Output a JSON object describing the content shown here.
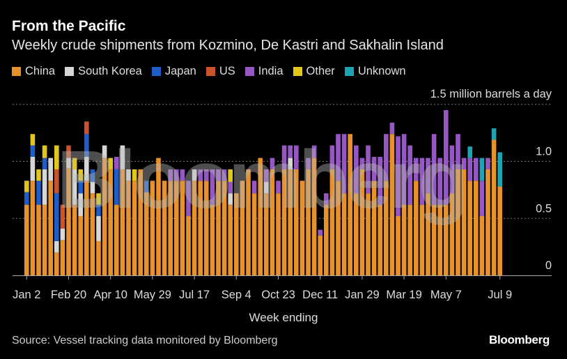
{
  "chart_data": {
    "type": "bar",
    "stacked": true,
    "title": "From the Pacific",
    "subtitle": "Weekly crude shipments from Kozmino, De Kastri and Sakhalin Island",
    "unit_label": "1.5 million barrels a day",
    "xlabel": "Week ending",
    "ylabel": "",
    "ylim": [
      0,
      1.5
    ],
    "yticks": [
      {
        "v": 0,
        "label": "0"
      },
      {
        "v": 0.5,
        "label": "0.5"
      },
      {
        "v": 1.0,
        "label": "1.0"
      }
    ],
    "grid": true,
    "legend_position": "top-left",
    "xtick_labels": [
      {
        "bar": 1,
        "label": "Jan 2"
      },
      {
        "bar": 8,
        "label": "Feb 20"
      },
      {
        "bar": 15,
        "label": "Apr 10"
      },
      {
        "bar": 22,
        "label": "May 29"
      },
      {
        "bar": 29,
        "label": "Jul 17"
      },
      {
        "bar": 36,
        "label": "Sep 4"
      },
      {
        "bar": 43,
        "label": "Oct 23"
      },
      {
        "bar": 50,
        "label": "Dec 11"
      },
      {
        "bar": 57,
        "label": "Jan 29"
      },
      {
        "bar": 64,
        "label": "Mar 19"
      },
      {
        "bar": 71,
        "label": "May 7"
      },
      {
        "bar": 80,
        "label": "Jul 9"
      }
    ],
    "series": [
      {
        "name": "China",
        "color": "#e8902a"
      },
      {
        "name": "South Korea",
        "color": "#d6d6d6"
      },
      {
        "name": "Japan",
        "color": "#1f5ec8"
      },
      {
        "name": "US",
        "color": "#c9532b"
      },
      {
        "name": "India",
        "color": "#9656c4"
      },
      {
        "name": "Other",
        "color": "#e2c61a"
      },
      {
        "name": "Unknown",
        "color": "#1ea3b4"
      }
    ],
    "stacks": [
      [
        0.62,
        0,
        0.11,
        0,
        0,
        0.1,
        0
      ],
      [
        0.83,
        0.21,
        0.1,
        0,
        0,
        0.1,
        0
      ],
      [
        0.62,
        0,
        0.21,
        0,
        0,
        0.1,
        0
      ],
      [
        0.62,
        0.31,
        0.1,
        0,
        0,
        0.11,
        0
      ],
      [
        0.83,
        0.2,
        0,
        0,
        0,
        0,
        0
      ],
      [
        0.2,
        0.1,
        0.42,
        0.21,
        0,
        0.21,
        0
      ],
      [
        0.31,
        0.1,
        0,
        0.21,
        0,
        0,
        0
      ],
      [
        0.94,
        0.09,
        0,
        0.11,
        0,
        0,
        0
      ],
      [
        0.62,
        0.31,
        0,
        0,
        0,
        0.1,
        0
      ],
      [
        0.52,
        0.2,
        0.11,
        0,
        0,
        0.1,
        0
      ],
      [
        0.83,
        0.21,
        0.2,
        0.11,
        0,
        0,
        0
      ],
      [
        0.72,
        0.1,
        0.11,
        0,
        0,
        0,
        0
      ],
      [
        0.3,
        0.22,
        0.1,
        0,
        0,
        0.1,
        0
      ],
      [
        1.03,
        0.11,
        0,
        0,
        0,
        0,
        0
      ],
      [
        0.93,
        0,
        0,
        0,
        0,
        0.1,
        0
      ],
      [
        0.62,
        0,
        0.31,
        0,
        0.11,
        0,
        0
      ],
      [
        0.93,
        0.21,
        0,
        0,
        0,
        0,
        0
      ],
      [
        0.83,
        0.1,
        0,
        0,
        0,
        0,
        0
      ],
      [
        0.83,
        0,
        0,
        0,
        0,
        0.1,
        0
      ],
      [
        0.93,
        0,
        0,
        0,
        0,
        0,
        0
      ],
      [
        0.73,
        0,
        0.1,
        0,
        0,
        0,
        0
      ],
      [
        0.83,
        0,
        0,
        0,
        0,
        0,
        0
      ],
      [
        1.03,
        0,
        0,
        0,
        0,
        0,
        0
      ],
      [
        0.83,
        0,
        0,
        0,
        0,
        0,
        0
      ],
      [
        0.83,
        0,
        0,
        0,
        0.1,
        0,
        0
      ],
      [
        0.83,
        0,
        0,
        0,
        0.1,
        0,
        0
      ],
      [
        0.83,
        0,
        0,
        0,
        0.1,
        0,
        0
      ],
      [
        0.52,
        0,
        0,
        0,
        0.31,
        0,
        0
      ],
      [
        0.83,
        0.1,
        0,
        0,
        0,
        0,
        0
      ],
      [
        0.83,
        0,
        0,
        0,
        0.1,
        0,
        0
      ],
      [
        0.83,
        0,
        0,
        0,
        0.1,
        0,
        0
      ],
      [
        0.62,
        0,
        0,
        0,
        0.31,
        0,
        0
      ],
      [
        0.83,
        0,
        0,
        0,
        0.1,
        0,
        0
      ],
      [
        0.83,
        0,
        0,
        0,
        0.1,
        0,
        0
      ],
      [
        0.62,
        0.1,
        0,
        0,
        0.1,
        0.11,
        0
      ],
      [
        0.72,
        0,
        0,
        0,
        0,
        0,
        0
      ],
      [
        0.83,
        0,
        0,
        0,
        0,
        0,
        0
      ],
      [
        0.93,
        0,
        0,
        0,
        0,
        0,
        0
      ],
      [
        0.72,
        0,
        0,
        0,
        0.11,
        0,
        0
      ],
      [
        1.03,
        0,
        0,
        0,
        0,
        0,
        0
      ],
      [
        0.72,
        0.1,
        0,
        0,
        0.11,
        0,
        0
      ],
      [
        0.93,
        0,
        0,
        0,
        0.1,
        0,
        0
      ],
      [
        0.72,
        0,
        0,
        0,
        0.11,
        0,
        0
      ],
      [
        0.93,
        0,
        0,
        0,
        0.21,
        0,
        0
      ],
      [
        0.93,
        0.1,
        0,
        0,
        0.11,
        0,
        0
      ],
      [
        0.93,
        0,
        0,
        0,
        0.21,
        0,
        0
      ],
      [
        0.83,
        0,
        0,
        0,
        0,
        0,
        0
      ],
      [
        0.93,
        0,
        0,
        0,
        0.1,
        0,
        0
      ],
      [
        1.03,
        0,
        0,
        0,
        0.11,
        0,
        0
      ],
      [
        0.35,
        0,
        0,
        0,
        0.05,
        0,
        0
      ],
      [
        0.62,
        0,
        0,
        0,
        0.1,
        0,
        0
      ],
      [
        0.93,
        0,
        0,
        0,
        0.21,
        0,
        0
      ],
      [
        0.83,
        0,
        0,
        0,
        0.41,
        0,
        0
      ],
      [
        0.72,
        0,
        0,
        0,
        0.52,
        0,
        0
      ],
      [
        1.24,
        0,
        0,
        0,
        0,
        0,
        0
      ],
      [
        0.72,
        0,
        0,
        0,
        0.42,
        0,
        0
      ],
      [
        0.93,
        0,
        0,
        0,
        0.1,
        0,
        0
      ],
      [
        0.72,
        0,
        0,
        0,
        0.42,
        0,
        0
      ],
      [
        0.83,
        0,
        0,
        0,
        0.21,
        0,
        0
      ],
      [
        0.62,
        0,
        0,
        0,
        0.42,
        0,
        0
      ],
      [
        0.83,
        0,
        0,
        0,
        0.41,
        0,
        0
      ],
      [
        1.24,
        0,
        0,
        0,
        0.1,
        0,
        0
      ],
      [
        0.52,
        0,
        0,
        0,
        0.7,
        0,
        0
      ],
      [
        0.62,
        0,
        0,
        0,
        0.62,
        0,
        0
      ],
      [
        0.62,
        0,
        0,
        0,
        0.52,
        0,
        0
      ],
      [
        0.83,
        0,
        0,
        0,
        0.2,
        0,
        0
      ],
      [
        0.62,
        0,
        0,
        0,
        0.41,
        0,
        0
      ],
      [
        0.72,
        0,
        0,
        0,
        0.31,
        0,
        0
      ],
      [
        0.62,
        0,
        0,
        0,
        0.62,
        0,
        0
      ],
      [
        0.62,
        0,
        0,
        0,
        0.41,
        0,
        0
      ],
      [
        0.62,
        0,
        0,
        0,
        0.83,
        0,
        0
      ],
      [
        0.72,
        0,
        0,
        0,
        0.42,
        0,
        0
      ],
      [
        0.93,
        0,
        0,
        0,
        0.31,
        0,
        0
      ],
      [
        0.93,
        0,
        0,
        0,
        0.1,
        0,
        0
      ],
      [
        0.83,
        0,
        0,
        0,
        0.2,
        0,
        0.1
      ],
      [
        0.83,
        0,
        0,
        0,
        0.2,
        0,
        0
      ],
      [
        0.52,
        0,
        0,
        0,
        0.31,
        0,
        0.2
      ],
      [
        0.93,
        0,
        0,
        0,
        0.1,
        0,
        0
      ],
      [
        1.19,
        0,
        0,
        0,
        0,
        0,
        0.1
      ],
      [
        0.78,
        0,
        0,
        0,
        0,
        0,
        0.3
      ]
    ],
    "source": "Source: Vessel tracking data monitored by Bloomberg",
    "watermark": "Bloomberg",
    "logo": "Bloomberg"
  }
}
